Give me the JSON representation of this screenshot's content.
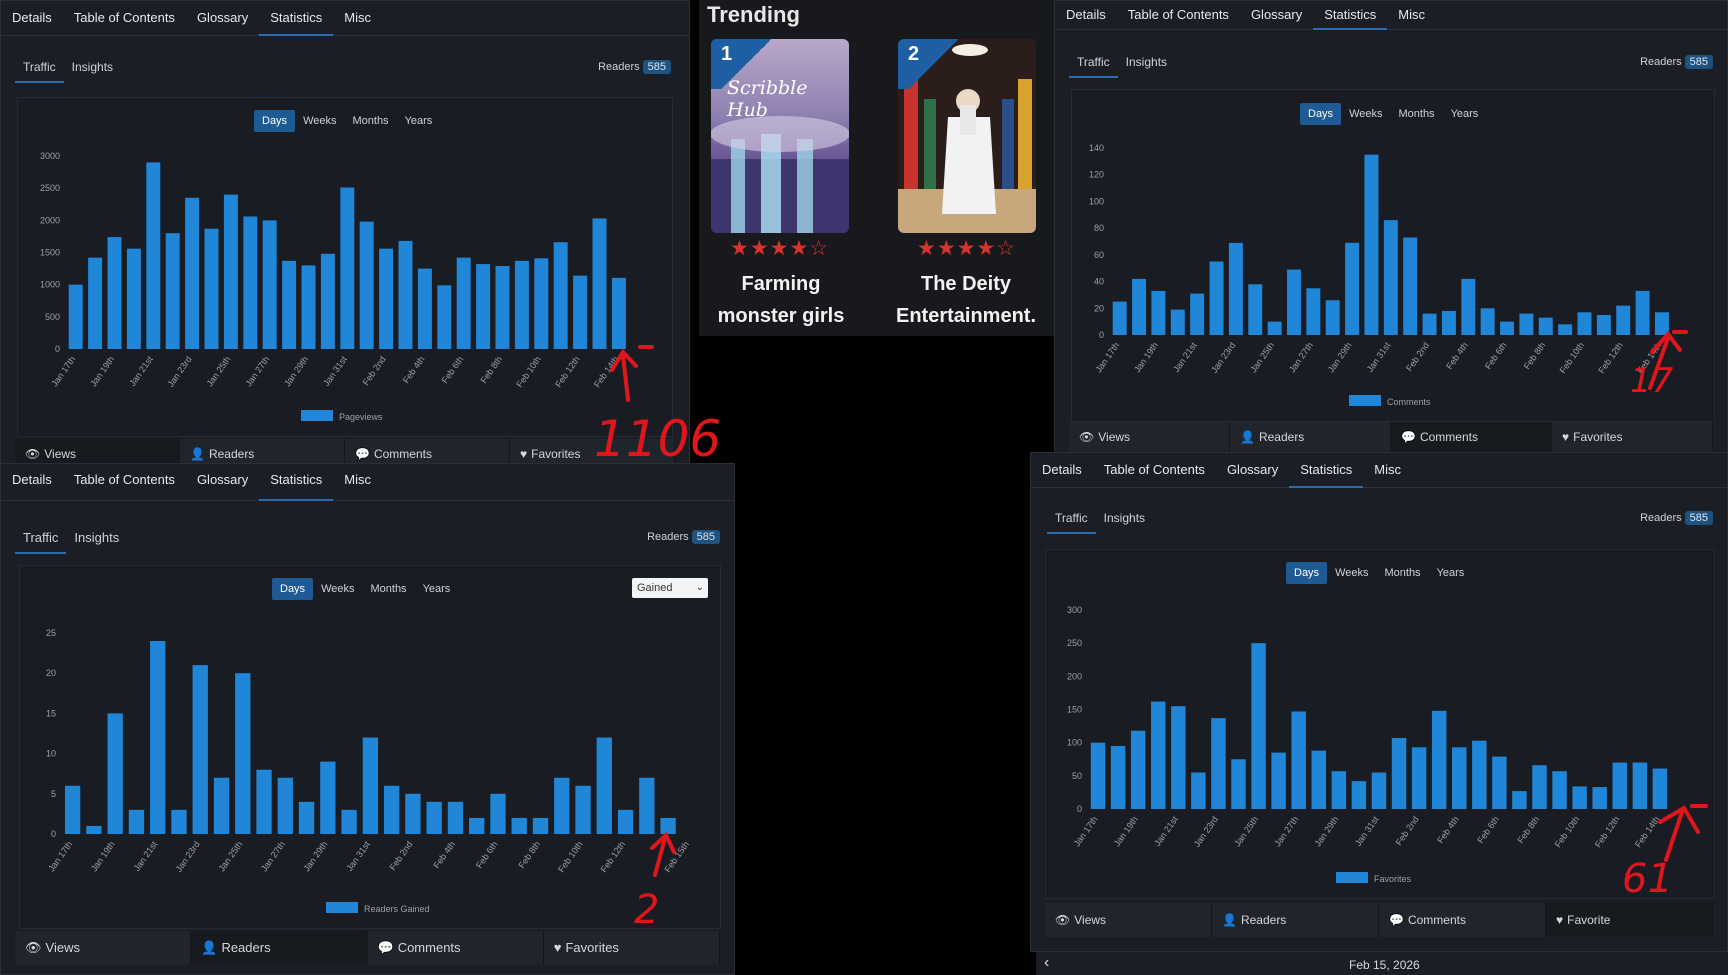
{
  "nav_tabs": [
    "Details",
    "Table of Contents",
    "Glossary",
    "Statistics",
    "Misc"
  ],
  "sub_tabs": [
    "Traffic",
    "Insights"
  ],
  "readers_label": "Readers",
  "readers_count": "585",
  "range_tabs": [
    "Days",
    "Weeks",
    "Months",
    "Years"
  ],
  "bottom_tabs": [
    "Views",
    "Readers",
    "Comments",
    "Favorites"
  ],
  "bottom_tabs_favorites_cut": "Favorite",
  "gained_select": "Gained",
  "trending": {
    "title": "Trending",
    "books": [
      {
        "rank": "1",
        "cover_text": "Scribble Hub",
        "title": "Farming monster girls",
        "rating_stars": "★★★★☆"
      },
      {
        "rank": "2",
        "cover_text": "",
        "title": "The Deity Entertainment.",
        "rating_stars": "★★★★☆"
      }
    ]
  },
  "date_nav": {
    "date": "Feb 15, 2026"
  },
  "annotations": [
    "1106",
    "17",
    "2",
    "61"
  ],
  "colors": {
    "bar": "#1f86d8",
    "accent": "#2b6cb0",
    "annotation": "#e0161d",
    "panel": "#1b1f25"
  },
  "chart_data": [
    {
      "type": "bar",
      "series_name": "Pageviews",
      "categories": [
        "Jan 17th",
        "Jan 18th",
        "Jan 19th",
        "Jan 20th",
        "Jan 21st",
        "Jan 22nd",
        "Jan 23rd",
        "Jan 24th",
        "Jan 25th",
        "Jan 26th",
        "Jan 27th",
        "Jan 28th",
        "Jan 29th",
        "Jan 30th",
        "Jan 31st",
        "Feb 1st",
        "Feb 2nd",
        "Feb 3rd",
        "Feb 4th",
        "Feb 5th",
        "Feb 6th",
        "Feb 7th",
        "Feb 8th",
        "Feb 9th",
        "Feb 10th",
        "Feb 11th",
        "Feb 12th",
        "Feb 13th",
        "Feb 14th",
        "Feb 15th"
      ],
      "xtick_labels": [
        "Jan 17th",
        "Jan 19th",
        "Jan 21st",
        "Jan 23rd",
        "Jan 25th",
        "Jan 27th",
        "Jan 29th",
        "Jan 31st",
        "Feb 2nd",
        "Feb 4th",
        "Feb 6th",
        "Feb 8th",
        "Feb 10th",
        "Feb 12th",
        "Feb 14th"
      ],
      "values": [
        1000,
        1420,
        1740,
        1560,
        2900,
        1800,
        2350,
        1870,
        2400,
        2060,
        2000,
        1370,
        1300,
        1480,
        2510,
        1980,
        1560,
        1680,
        1250,
        990,
        1420,
        1320,
        1290,
        1370,
        1410,
        1660,
        1140,
        2030,
        1106,
        null
      ],
      "yticks": [
        0,
        500,
        1000,
        1500,
        2000,
        2500,
        3000
      ],
      "ylim": [
        0,
        3000
      ]
    },
    {
      "type": "bar",
      "series_name": "Comments",
      "categories": [
        "Jan 17th",
        "Jan 18th",
        "Jan 19th",
        "Jan 20th",
        "Jan 21st",
        "Jan 22nd",
        "Jan 23rd",
        "Jan 24th",
        "Jan 25th",
        "Jan 26th",
        "Jan 27th",
        "Jan 28th",
        "Jan 29th",
        "Jan 30th",
        "Jan 31st",
        "Feb 1st",
        "Feb 2nd",
        "Feb 3rd",
        "Feb 4th",
        "Feb 5th",
        "Feb 6th",
        "Feb 7th",
        "Feb 8th",
        "Feb 9th",
        "Feb 10th",
        "Feb 11th",
        "Feb 12th",
        "Feb 13th",
        "Feb 14th",
        "Feb 15th"
      ],
      "xtick_labels": [
        "Jan 17th",
        "Jan 19th",
        "Jan 21st",
        "Jan 23rd",
        "Jan 25th",
        "Jan 27th",
        "Jan 29th",
        "Jan 31st",
        "Feb 2nd",
        "Feb 4th",
        "Feb 6th",
        "Feb 8th",
        "Feb 10th",
        "Feb 12th",
        "Feb 14th"
      ],
      "values": [
        25,
        42,
        33,
        19,
        31,
        55,
        69,
        38,
        10,
        49,
        35,
        26,
        69,
        135,
        86,
        73,
        16,
        18,
        42,
        20,
        10,
        16,
        13,
        8,
        17,
        15,
        22,
        33,
        17,
        null
      ],
      "yticks": [
        0,
        20,
        40,
        60,
        80,
        100,
        120,
        140
      ],
      "ylim": [
        0,
        140
      ]
    },
    {
      "type": "bar",
      "series_name": "Readers Gained",
      "categories": [
        "Jan 17th",
        "Jan 18th",
        "Jan 19th",
        "Jan 20th",
        "Jan 21st",
        "Jan 22nd",
        "Jan 23rd",
        "Jan 24th",
        "Jan 25th",
        "Jan 26th",
        "Jan 27th",
        "Jan 28th",
        "Jan 29th",
        "Jan 30th",
        "Jan 31st",
        "Feb 1st",
        "Feb 2nd",
        "Feb 3rd",
        "Feb 4th",
        "Feb 5th",
        "Feb 6th",
        "Feb 7th",
        "Feb 8th",
        "Feb 9th",
        "Feb 10th",
        "Feb 11th",
        "Feb 12th",
        "Feb 13th",
        "Feb 14th",
        "Feb 15th"
      ],
      "xtick_labels": [
        "Jan 17th",
        "Jan 19th",
        "Jan 21st",
        "Jan 23rd",
        "Jan 25th",
        "Jan 27th",
        "Jan 29th",
        "Jan 31st",
        "Feb 2nd",
        "Feb 4th",
        "Feb 6th",
        "Feb 8th",
        "Feb 10th",
        "Feb 12th",
        "Feb 15th"
      ],
      "values": [
        6,
        1,
        15,
        3,
        24,
        3,
        21,
        7,
        20,
        8,
        7,
        4,
        9,
        3,
        12,
        6,
        5,
        4,
        4,
        2,
        5,
        2,
        2,
        7,
        6,
        12,
        3,
        7,
        2,
        null
      ],
      "yticks": [
        0,
        5,
        10,
        15,
        20,
        25
      ],
      "ylim": [
        0,
        25
      ]
    },
    {
      "type": "bar",
      "series_name": "Favorites",
      "categories": [
        "Jan 17th",
        "Jan 18th",
        "Jan 19th",
        "Jan 20th",
        "Jan 21st",
        "Jan 22nd",
        "Jan 23rd",
        "Jan 24th",
        "Jan 25th",
        "Jan 26th",
        "Jan 27th",
        "Jan 28th",
        "Jan 29th",
        "Jan 30th",
        "Jan 31st",
        "Feb 1st",
        "Feb 2nd",
        "Feb 3rd",
        "Feb 4th",
        "Feb 5th",
        "Feb 6th",
        "Feb 7th",
        "Feb 8th",
        "Feb 9th",
        "Feb 10th",
        "Feb 11th",
        "Feb 12th",
        "Feb 13th",
        "Feb 14th",
        "Feb 15th"
      ],
      "xtick_labels": [
        "Jan 17th",
        "Jan 19th",
        "Jan 21st",
        "Jan 23rd",
        "Jan 25th",
        "Jan 27th",
        "Jan 29th",
        "Jan 31st",
        "Feb 2nd",
        "Feb 4th",
        "Feb 6th",
        "Feb 8th",
        "Feb 10th",
        "Feb 12th",
        "Feb 14th"
      ],
      "values": [
        100,
        95,
        118,
        162,
        155,
        55,
        137,
        75,
        250,
        85,
        147,
        88,
        57,
        42,
        55,
        107,
        93,
        148,
        93,
        103,
        79,
        27,
        66,
        57,
        34,
        33,
        70,
        70,
        61,
        null
      ],
      "yticks": [
        0,
        50,
        100,
        150,
        200,
        250,
        300
      ],
      "ylim": [
        0,
        300
      ]
    }
  ]
}
